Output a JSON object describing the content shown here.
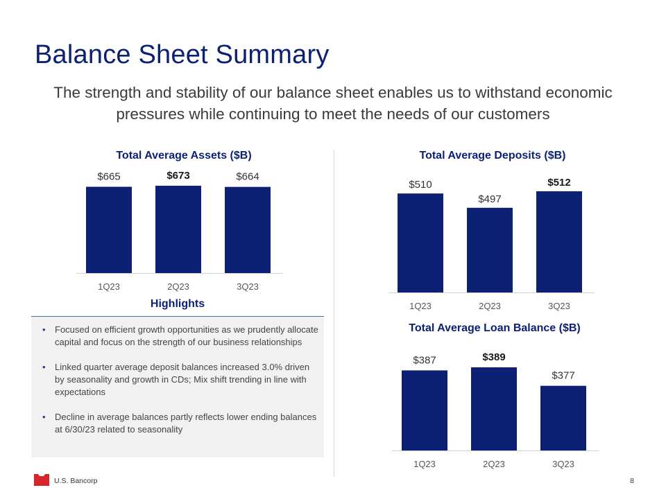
{
  "slide": {
    "title": "Balance Sheet Summary",
    "subtitle": "The strength and stability of our balance sheet enables us to withstand economic pressures while continuing to meet the needs of our customers",
    "company": "U.S. Bancorp",
    "page_number": "8",
    "brand_color": "#0c2074",
    "logo_color": "#d7262a"
  },
  "highlights": {
    "title": "Highlights",
    "items": [
      "Focused on efficient growth opportunities as we prudently allocate capital and focus on the strength of our business relationships",
      "Linked quarter average deposit balances increased 3.0% driven by seasonality and growth in CDs; Mix shift trending in line with expectations",
      "Decline in average balances partly reflects lower ending balances at 6/30/23 related to seasonality"
    ]
  },
  "chart_data": [
    {
      "id": "assets",
      "type": "bar",
      "title": "Total Average Assets ($B)",
      "categories": [
        "1Q23",
        "2Q23",
        "3Q23"
      ],
      "values": [
        665,
        673,
        664
      ],
      "labels": [
        "$665",
        "$673",
        "$664"
      ],
      "bold_label_index": 1,
      "ylim": [
        0,
        673
      ]
    },
    {
      "id": "deposits",
      "type": "bar",
      "title": "Total Average Deposits ($B)",
      "categories": [
        "1Q23",
        "2Q23",
        "3Q23"
      ],
      "values": [
        510,
        497,
        512
      ],
      "labels": [
        "$510",
        "$497",
        "$512"
      ],
      "bold_label_index": 2,
      "ylim": [
        420,
        512
      ]
    },
    {
      "id": "loans",
      "type": "bar",
      "title": "Total Average Loan Balance ($B)",
      "categories": [
        "1Q23",
        "2Q23",
        "3Q23"
      ],
      "values": [
        387,
        389,
        377
      ],
      "labels": [
        "$387",
        "$389",
        "$377"
      ],
      "bold_label_index": 1,
      "ylim": [
        335,
        389
      ]
    }
  ]
}
